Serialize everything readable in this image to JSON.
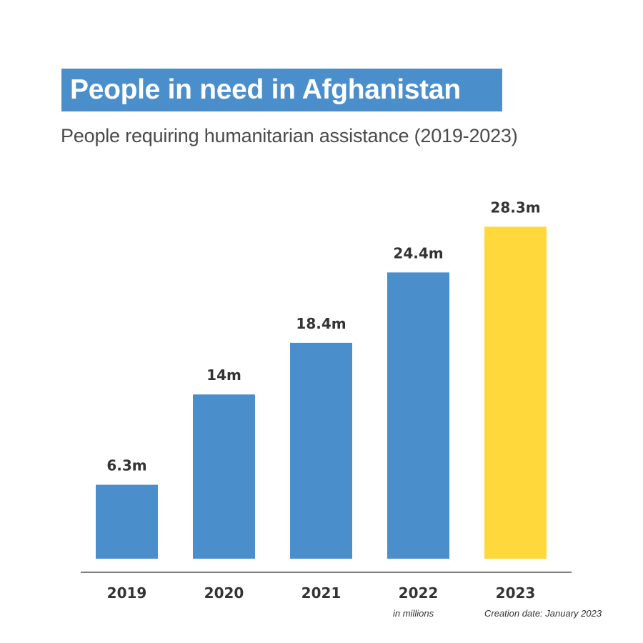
{
  "title": "People in need in Afghanistan",
  "subtitle": "People requiring humanitarian assistance (2019-2023)",
  "notes": {
    "units": "in millions",
    "creation_date": "Creation date: January 2023"
  },
  "colors": {
    "title_bg": "#4a8fcc",
    "bar": "#4a8fcc",
    "highlight_bar": "#ffd93b",
    "text": "#333333",
    "axis": "#555555"
  },
  "chart_data": {
    "type": "bar",
    "title": "People in need in Afghanistan",
    "subtitle": "People requiring humanitarian assistance (2019-2023)",
    "categories": [
      "2019",
      "2020",
      "2021",
      "2022",
      "2023"
    ],
    "values": [
      6.3,
      14,
      18.4,
      24.4,
      28.3
    ],
    "value_labels": [
      "6.3m",
      "14m",
      "18.4m",
      "24.4m",
      "28.3m"
    ],
    "unit": "in millions",
    "highlight_index": 4,
    "ylim": [
      0,
      30
    ],
    "grid": false,
    "legend": "none"
  }
}
